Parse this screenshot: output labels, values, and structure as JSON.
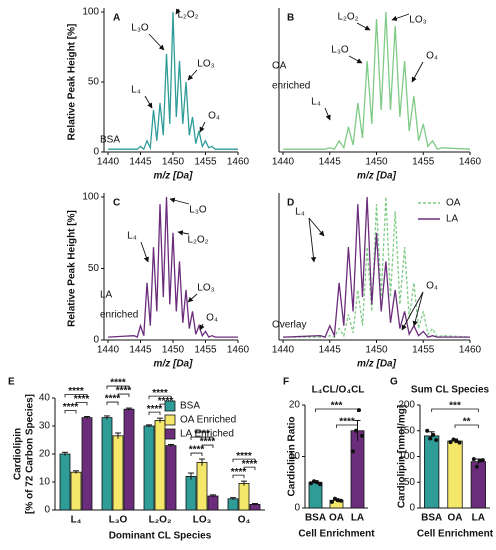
{
  "chart_data": [
    {
      "type": "line",
      "panel": "A",
      "label": [
        "BSA"
      ],
      "annotations": [
        "L₃O",
        "L₂O₂",
        "LO₃",
        "L₄",
        "O₄"
      ],
      "xlabel": "m/z [Da]",
      "ylabel": "Relative Peak Height [%]",
      "x": [
        1440,
        1444,
        1444.5,
        1445,
        1445.5,
        1446,
        1446.5,
        1447,
        1447.5,
        1448,
        1448.5,
        1449,
        1449.5,
        1450,
        1450.5,
        1451,
        1451.5,
        1452,
        1452.5,
        1453,
        1453.5,
        1454,
        1454.5,
        1455,
        1455.5,
        1456,
        1456.5,
        1457,
        1460
      ],
      "series": [
        {
          "color": "#2f9c98",
          "values": [
            2,
            2,
            2,
            4,
            2,
            8,
            3,
            30,
            8,
            35,
            12,
            70,
            20,
            100,
            25,
            65,
            20,
            50,
            12,
            25,
            6,
            15,
            4,
            8,
            3,
            4,
            2,
            2,
            2
          ]
        }
      ],
      "xlim": [
        1440,
        1460
      ],
      "xticks": [
        1440,
        1445,
        1450,
        1455,
        1460
      ],
      "ylim": [
        0,
        100
      ],
      "yticks": [
        0,
        50,
        100
      ]
    },
    {
      "type": "line",
      "panel": "B",
      "label": [
        "OA",
        "enriched"
      ],
      "annotations": [
        "L₂O₂",
        "LO₃",
        "L₃O",
        "O₄",
        "L₄"
      ],
      "xlabel": "m/z [Da]",
      "x": [
        1440,
        1444,
        1444.5,
        1445,
        1445.5,
        1446,
        1446.5,
        1447,
        1447.5,
        1448,
        1448.5,
        1449,
        1449.5,
        1450,
        1450.5,
        1451,
        1451.5,
        1452,
        1452.5,
        1453,
        1453.5,
        1454,
        1454.5,
        1455,
        1455.5,
        1456,
        1456.5,
        1457,
        1460
      ],
      "series": [
        {
          "color": "#7fcb86",
          "values": [
            2,
            2,
            2,
            3,
            2,
            8,
            3,
            18,
            5,
            35,
            10,
            65,
            20,
            95,
            30,
            100,
            30,
            90,
            25,
            65,
            15,
            40,
            8,
            20,
            4,
            8,
            2,
            3,
            2
          ]
        }
      ],
      "xlim": [
        1440,
        1460
      ],
      "xticks": [
        1440,
        1445,
        1450,
        1455,
        1460
      ],
      "ylim": [
        0,
        100
      ]
    },
    {
      "type": "line",
      "panel": "C",
      "label": [
        "LA",
        "enriched"
      ],
      "annotations": [
        "L₃O",
        "L₂O₂",
        "L₄",
        "LO₃",
        "O₄"
      ],
      "xlabel": "m/z [Da]",
      "ylabel": "Relative Peak Height [%]",
      "x": [
        1440,
        1444,
        1444.5,
        1445,
        1445.5,
        1446,
        1446.5,
        1447,
        1447.5,
        1448,
        1448.5,
        1449,
        1449.5,
        1450,
        1450.5,
        1451,
        1451.5,
        1452,
        1452.5,
        1453,
        1453.5,
        1454,
        1454.5,
        1455,
        1455.5,
        1456,
        1456.5,
        1457,
        1460
      ],
      "series": [
        {
          "color": "#6b2d7b",
          "values": [
            2,
            3,
            2,
            10,
            3,
            40,
            10,
            65,
            20,
            95,
            30,
            100,
            25,
            75,
            20,
            55,
            12,
            35,
            8,
            20,
            4,
            10,
            3,
            6,
            2,
            3,
            2,
            2,
            2
          ]
        }
      ],
      "xlim": [
        1440,
        1460
      ],
      "xticks": [
        1440,
        1445,
        1450,
        1455,
        1460
      ],
      "ylim": [
        0,
        100
      ],
      "yticks": [
        0,
        50,
        100
      ]
    },
    {
      "type": "line",
      "panel": "D",
      "label": [
        "Overlay"
      ],
      "annotations": [
        "L₄",
        "O₄"
      ],
      "xlabel": "m/z [Da]",
      "x": [
        1440,
        1444,
        1444.5,
        1445,
        1445.5,
        1446,
        1446.5,
        1447,
        1447.5,
        1448,
        1448.5,
        1449,
        1449.5,
        1450,
        1450.5,
        1451,
        1451.5,
        1452,
        1452.5,
        1453,
        1453.5,
        1454,
        1454.5,
        1455,
        1455.5,
        1456,
        1456.5,
        1457,
        1460
      ],
      "series": [
        {
          "name": "OA",
          "color": "#7fcb86",
          "dashed": true,
          "values": [
            2,
            2,
            2,
            3,
            2,
            8,
            3,
            18,
            5,
            35,
            10,
            65,
            20,
            95,
            30,
            100,
            30,
            90,
            25,
            65,
            15,
            40,
            8,
            20,
            4,
            8,
            2,
            3,
            2
          ]
        },
        {
          "name": "LA",
          "color": "#6b2d7b",
          "dashed": false,
          "values": [
            2,
            3,
            2,
            10,
            3,
            40,
            10,
            65,
            20,
            95,
            30,
            100,
            25,
            75,
            20,
            55,
            12,
            35,
            8,
            20,
            4,
            10,
            3,
            6,
            2,
            3,
            2,
            2,
            2
          ]
        }
      ],
      "xlim": [
        1440,
        1460
      ],
      "xticks": [
        1440,
        1445,
        1450,
        1455,
        1460
      ],
      "ylim": [
        0,
        100
      ],
      "legend": "upper right"
    },
    {
      "type": "bar",
      "panel": "E",
      "xlabel": "Dominant CL Species",
      "ylabel": [
        "Cardiolipin",
        "[% of 72 Carbon Species]"
      ],
      "categories": [
        "L₄",
        "L₃O",
        "L₂O₂",
        "LO₃",
        "O₄"
      ],
      "series": [
        {
          "name": "BSA",
          "color": "#2f9c98",
          "values": [
            20,
            33,
            30,
            12,
            4
          ],
          "errors": [
            0.6,
            0.6,
            0.4,
            1.2,
            0.4
          ]
        },
        {
          "name": "OA Enriched",
          "color": "#f4e76a",
          "values": [
            13.5,
            26.5,
            32,
            17,
            9.5
          ],
          "errors": [
            0.5,
            1,
            0.8,
            1.2,
            0.8
          ]
        },
        {
          "name": "LA Enriched",
          "color": "#6b2d7b",
          "values": [
            33,
            36,
            23,
            5,
            2
          ],
          "errors": [
            0.4,
            0.4,
            0.4,
            0.4,
            0.3
          ]
        }
      ],
      "significance": [
        "****",
        "****",
        "****",
        "****",
        "****",
        "****",
        "****",
        "****",
        "****",
        "****",
        "****",
        "****",
        "****",
        "****",
        "****"
      ],
      "ylim": [
        0,
        40
      ],
      "yticks": [
        0,
        10,
        20,
        30,
        40
      ],
      "legend": "upper right"
    },
    {
      "type": "bar",
      "panel": "F",
      "title": "L₄CL/O₄CL",
      "xlabel": "Cell Enrichment",
      "ylabel": [
        "Cardiolipin Ratio"
      ],
      "categories": [
        "BSA",
        "OA",
        "LA"
      ],
      "colors": [
        "#2f9c98",
        "#f4e76a",
        "#6b2d7b"
      ],
      "values": [
        5,
        1.5,
        15
      ],
      "errors": [
        0.3,
        0.3,
        2
      ],
      "points": [
        [
          4.8,
          5.2,
          5.0,
          4.6
        ],
        [
          1.2,
          1.8,
          1.5,
          1.4
        ],
        [
          11,
          15,
          19,
          14
        ]
      ],
      "significance": [
        "***",
        "****"
      ],
      "ylim": [
        0,
        20
      ],
      "yticks": [
        0,
        10,
        20
      ]
    },
    {
      "type": "bar",
      "panel": "G",
      "title": "Sum CL Species",
      "xlabel": "Cell Enrichment",
      "ylabel": [
        "Cardiolipin [nmol/mg]"
      ],
      "categories": [
        "BSA",
        "OA",
        "LA"
      ],
      "colors": [
        "#2f9c98",
        "#f4e76a",
        "#6b2d7b"
      ],
      "values": [
        140,
        130,
        90
      ],
      "errors": [
        8,
        4,
        5
      ],
      "points": [
        [
          150,
          135,
          142,
          132
        ],
        [
          128,
          133,
          130,
          127
        ],
        [
          95,
          80,
          92,
          93
        ]
      ],
      "significance": [
        "***",
        "**"
      ],
      "ylim": [
        0,
        200
      ],
      "yticks": [
        0,
        50,
        100,
        150,
        200
      ]
    }
  ]
}
